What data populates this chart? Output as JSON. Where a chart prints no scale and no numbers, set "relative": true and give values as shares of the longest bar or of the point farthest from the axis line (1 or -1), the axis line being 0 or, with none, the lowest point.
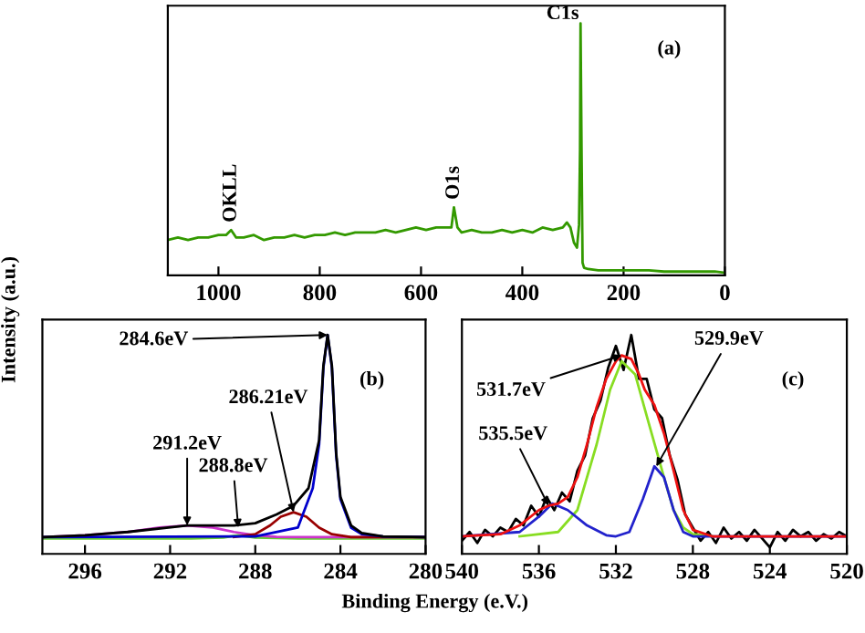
{
  "chart_data": [
    {
      "type": "line",
      "relative": true,
      "tick_labels": "x",
      "xlim": [
        1100,
        0
      ],
      "xticks": [
        1000,
        800,
        600,
        400,
        200,
        0
      ],
      "series": [
        {
          "color": "#339900",
          "x": [
            1100,
            1080,
            1060,
            1040,
            1020,
            1000,
            985,
            975,
            965,
            950,
            930,
            910,
            890,
            870,
            850,
            830,
            810,
            790,
            770,
            750,
            730,
            710,
            690,
            670,
            650,
            630,
            610,
            590,
            570,
            550,
            540,
            535,
            528,
            520,
            500,
            480,
            460,
            440,
            420,
            400,
            380,
            360,
            340,
            320,
            312,
            305,
            298,
            292,
            288,
            286,
            285,
            283,
            281,
            278,
            270,
            250,
            230,
            200,
            170,
            150,
            120,
            100,
            70,
            50,
            20,
            0
          ],
          "values": [
            0.14,
            0.15,
            0.14,
            0.15,
            0.15,
            0.16,
            0.16,
            0.18,
            0.15,
            0.15,
            0.16,
            0.14,
            0.15,
            0.15,
            0.16,
            0.15,
            0.16,
            0.16,
            0.17,
            0.16,
            0.17,
            0.17,
            0.17,
            0.18,
            0.17,
            0.18,
            0.19,
            0.18,
            0.19,
            0.19,
            0.19,
            0.27,
            0.19,
            0.17,
            0.18,
            0.17,
            0.17,
            0.18,
            0.17,
            0.18,
            0.17,
            0.19,
            0.18,
            0.19,
            0.21,
            0.19,
            0.13,
            0.11,
            0.2,
            0.5,
            1.0,
            0.5,
            0.05,
            0.03,
            0.025,
            0.02,
            0.02,
            0.02,
            0.02,
            0.02,
            0.015,
            0.015,
            0.015,
            0.015,
            0.015,
            0.01
          ]
        }
      ],
      "annotations": [
        {
          "text": "C1s",
          "x": 283,
          "y": 1.0
        },
        {
          "text": "O1s",
          "x": 535,
          "y": 0.27
        },
        {
          "text": "OKLL",
          "x": 975,
          "y": 0.18
        },
        "(a)"
      ]
    },
    {
      "type": "line",
      "relative": true,
      "tick_labels": "x",
      "xlim": [
        298,
        280
      ],
      "xticks": [
        296,
        292,
        288,
        284,
        280
      ],
      "ylabel": "Intensity (a.u.)",
      "series": [
        {
          "color": "#66cc33",
          "x": [
            298,
            294,
            291,
            289.5,
            288.8,
            288,
            286,
            283,
            280
          ],
          "values": [
            0.07,
            0.07,
            0.07,
            0.075,
            0.085,
            0.075,
            0.07,
            0.07,
            0.07
          ]
        },
        {
          "color": "#cc33cc",
          "x": [
            298,
            296,
            294,
            292.5,
            291.2,
            290,
            289,
            288,
            287,
            285,
            280
          ],
          "values": [
            0.077,
            0.085,
            0.1,
            0.12,
            0.13,
            0.12,
            0.1,
            0.085,
            0.078,
            0.077,
            0.077
          ]
        },
        {
          "color": "#990000",
          "x": [
            289,
            288,
            287.3,
            286.8,
            286.2,
            285.6,
            285,
            284.4,
            283.5,
            280
          ],
          "values": [
            0.077,
            0.09,
            0.13,
            0.17,
            0.19,
            0.17,
            0.12,
            0.09,
            0.077,
            0.077
          ]
        },
        {
          "color": "#0000cc",
          "x": [
            298,
            288,
            286,
            285.3,
            285,
            284.8,
            284.6,
            284.4,
            284.2,
            284,
            283.5,
            283,
            282,
            280
          ],
          "values": [
            0.077,
            0.08,
            0.12,
            0.3,
            0.5,
            0.85,
            1.0,
            0.85,
            0.45,
            0.25,
            0.12,
            0.09,
            0.08,
            0.077
          ]
        },
        {
          "color": "#000000",
          "x": [
            298,
            296,
            294,
            291.2,
            289,
            288,
            287,
            286.2,
            285.5,
            285,
            284.8,
            284.6,
            284.4,
            284.2,
            284,
            283.5,
            283,
            282,
            280
          ],
          "values": [
            0.077,
            0.085,
            0.1,
            0.13,
            0.13,
            0.14,
            0.18,
            0.22,
            0.3,
            0.52,
            0.86,
            1.0,
            0.86,
            0.46,
            0.26,
            0.13,
            0.095,
            0.08,
            0.077
          ]
        }
      ],
      "annotations": [
        {
          "text": "284.6eV",
          "x": 284.6,
          "y": 1.0
        },
        {
          "text": "286.21eV",
          "x": 286.2,
          "y": 0.19
        },
        {
          "text": "291.2eV",
          "x": 291.2,
          "y": 0.13
        },
        {
          "text": "288.8eV",
          "x": 288.8,
          "y": 0.12
        },
        "(b)"
      ]
    },
    {
      "type": "line",
      "relative": true,
      "tick_labels": "x",
      "xlim": [
        540,
        520
      ],
      "xticks": [
        540,
        536,
        532,
        528,
        524,
        520
      ],
      "xlabel": "Binding Energy (e.V.)",
      "series": [
        {
          "color": "#000000",
          "x": [
            540,
            539.6,
            539.2,
            538.8,
            538.4,
            538,
            537.6,
            537.2,
            536.8,
            536.4,
            536,
            535.6,
            535.2,
            534.8,
            534.4,
            534,
            533.6,
            533.2,
            532.8,
            532.4,
            532,
            531.6,
            531.2,
            530.8,
            530.4,
            530,
            529.6,
            529.2,
            528.8,
            528.4,
            528,
            527.6,
            527.2,
            526.8,
            526.4,
            526,
            525.6,
            525.2,
            524.8,
            524.4,
            524,
            523.6,
            523.2,
            522.8,
            522.4,
            522,
            521.6,
            521.2,
            520.8,
            520.4,
            520
          ],
          "values": [
            0.06,
            0.1,
            0.05,
            0.11,
            0.08,
            0.12,
            0.1,
            0.16,
            0.13,
            0.22,
            0.17,
            0.26,
            0.2,
            0.28,
            0.24,
            0.38,
            0.45,
            0.62,
            0.7,
            0.85,
            0.95,
            0.84,
            1.0,
            0.8,
            0.8,
            0.66,
            0.62,
            0.45,
            0.34,
            0.18,
            0.12,
            0.06,
            0.1,
            0.05,
            0.12,
            0.07,
            0.1,
            0.06,
            0.11,
            0.07,
            0.03,
            0.1,
            0.06,
            0.11,
            0.08,
            0.1,
            0.06,
            0.09,
            0.07,
            0.1,
            0.08
          ]
        },
        {
          "color": "#88dd22",
          "x": [
            537,
            535,
            534,
            533,
            532.3,
            531.7,
            531,
            530.3,
            529.5,
            529,
            528.5,
            528,
            527
          ],
          "values": [
            0.08,
            0.1,
            0.2,
            0.5,
            0.75,
            0.88,
            0.82,
            0.6,
            0.35,
            0.2,
            0.12,
            0.09,
            0.08
          ]
        },
        {
          "color": "#2222cc",
          "x": [
            540,
            537,
            536,
            535.3,
            534.5,
            533.5,
            532.5,
            532,
            531.3,
            530.6,
            530,
            529.5,
            529,
            528.5,
            528,
            527,
            520
          ],
          "values": [
            0.08,
            0.1,
            0.17,
            0.23,
            0.2,
            0.13,
            0.085,
            0.08,
            0.1,
            0.25,
            0.4,
            0.35,
            0.2,
            0.1,
            0.08,
            0.08,
            0.08
          ]
        },
        {
          "color": "#ee1111",
          "x": [
            540,
            538,
            537,
            536,
            535.5,
            535,
            534.5,
            534,
            533.5,
            533,
            532.5,
            532,
            531.7,
            531.2,
            530.8,
            530.5,
            530,
            529.5,
            529,
            528.5,
            528,
            527,
            520
          ],
          "values": [
            0.08,
            0.09,
            0.13,
            0.2,
            0.22,
            0.23,
            0.26,
            0.35,
            0.5,
            0.67,
            0.8,
            0.88,
            0.907,
            0.89,
            0.82,
            0.75,
            0.68,
            0.55,
            0.38,
            0.2,
            0.11,
            0.08,
            0.08
          ]
        }
      ],
      "annotations": [
        {
          "text": "531.7eV",
          "x": 531.7,
          "y": 0.907
        },
        {
          "text": "529.9eV",
          "x": 529.9,
          "y": 0.4
        },
        {
          "text": "535.5eV",
          "x": 535.5,
          "y": 0.22
        },
        "(c)"
      ]
    }
  ]
}
